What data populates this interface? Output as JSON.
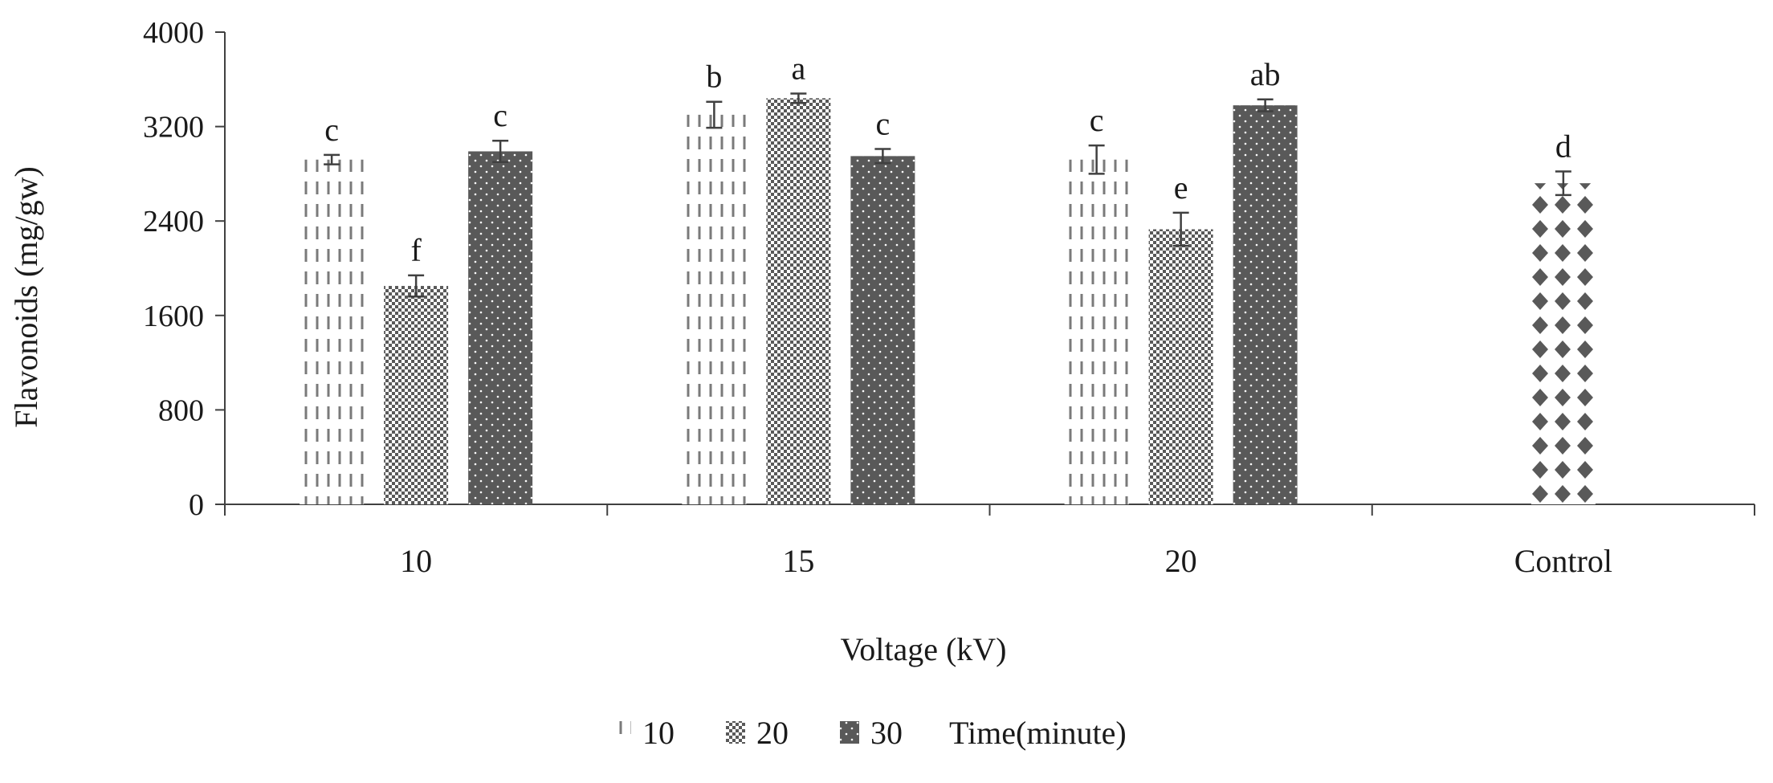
{
  "chart_data": {
    "type": "bar",
    "title": "",
    "xlabel": "Voltage (kV)",
    "ylabel": "Flavonoids (mg/gw)",
    "ylim": [
      0,
      4000
    ],
    "yticks": [
      0,
      800,
      1600,
      2400,
      3200,
      4000
    ],
    "categories": [
      "10",
      "15",
      "20",
      "Control"
    ],
    "legend_title": "Time(minute)",
    "legend_position": "bottom",
    "series": [
      {
        "name": "10",
        "pattern": "dashed-lines",
        "values": [
          2920,
          3300,
          2920,
          null
        ],
        "errors": [
          40,
          110,
          120,
          null
        ],
        "labels": [
          "c",
          "b",
          "c",
          null
        ]
      },
      {
        "name": "20",
        "pattern": "checker",
        "values": [
          1850,
          3440,
          2330,
          null
        ],
        "errors": [
          90,
          40,
          140,
          null
        ],
        "labels": [
          "f",
          "a",
          "e",
          null
        ]
      },
      {
        "name": "30",
        "pattern": "dark-dots",
        "values": [
          2990,
          2950,
          3380,
          null
        ],
        "errors": [
          90,
          60,
          50,
          null
        ],
        "labels": [
          "c",
          "c",
          "ab",
          null
        ]
      },
      {
        "name": "Control",
        "pattern": "diamond",
        "values": [
          null,
          null,
          null,
          2720
        ],
        "errors": [
          null,
          null,
          null,
          100
        ],
        "labels": [
          null,
          null,
          null,
          "d"
        ],
        "in_legend": false
      }
    ]
  }
}
